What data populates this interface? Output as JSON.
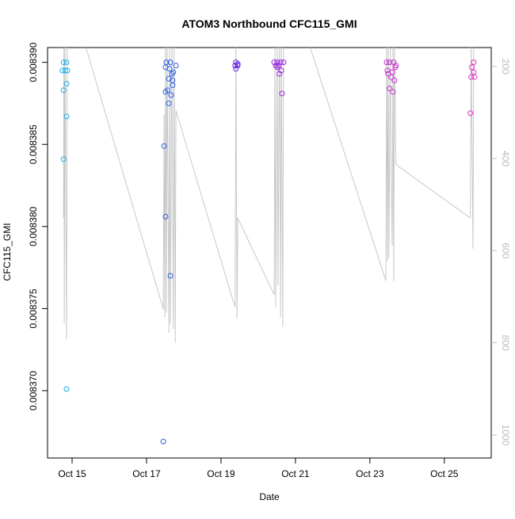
{
  "chart_data": {
    "type": "scatter",
    "title": "ATOM3 Northbound CFC115_GMI",
    "xlabel": "Date",
    "ylabel": "CFC115_GMI",
    "xlim": [
      14.34,
      26.26
    ],
    "xticks": [
      {
        "value": 15,
        "label": "Oct 15"
      },
      {
        "value": 17,
        "label": "Oct 17"
      },
      {
        "value": 19,
        "label": "Oct 19"
      },
      {
        "value": 21,
        "label": "Oct 21"
      },
      {
        "value": 23,
        "label": "Oct 23"
      },
      {
        "value": 25,
        "label": "Oct 25"
      }
    ],
    "ylim": [
      0.0083659,
      0.0083909
    ],
    "yticks": [
      {
        "value": 0.00837,
        "label": "0.008370"
      },
      0.008375,
      {
        "value": 0.00838,
        "label": "0.008380"
      },
      0.008385,
      {
        "value": 0.00839,
        "label": "0.008390"
      }
    ],
    "y2lim": [
      1050,
      159
    ],
    "y2ticks": [
      200,
      400,
      600,
      800,
      1000
    ],
    "y2color": "#bbbbbb",
    "series": [
      {
        "color": "#22b0e6",
        "x": [
          14.77,
          14.85,
          14.74,
          14.81,
          14.87,
          14.77,
          14.85,
          14.85,
          14.77,
          14.85
        ],
        "values": [
          0.00839,
          0.00839,
          0.0083895,
          0.0083895,
          0.0083895,
          0.0083883,
          0.0083887,
          0.0083867,
          0.0083841,
          0.0083701
        ]
      },
      {
        "color": "#2a5ee0",
        "x": [
          17.53,
          17.64,
          17.51,
          17.79,
          17.62,
          17.72,
          17.68,
          17.6,
          17.7,
          17.51,
          17.57,
          17.66,
          17.6,
          17.7,
          17.47,
          17.51,
          17.64,
          17.45
        ],
        "values": [
          0.00839,
          0.00839,
          0.0083897,
          0.0083898,
          0.0083896,
          0.0083894,
          0.0083893,
          0.008389,
          0.0083889,
          0.0083882,
          0.0083883,
          0.008388,
          0.0083875,
          0.0083886,
          0.0083849,
          0.0083806,
          0.008377,
          0.0083669
        ]
      },
      {
        "color": "#6a1ee6",
        "x": [
          19.4,
          19.45,
          19.38,
          19.45,
          19.4
        ],
        "values": [
          0.00839,
          0.0083899,
          0.0083898,
          0.0083898,
          0.0083896
        ]
      },
      {
        "color": "#9a28e0",
        "x": [
          20.43,
          20.51,
          20.6,
          20.68,
          20.47,
          20.55,
          20.62,
          20.57,
          20.51,
          20.64
        ],
        "values": [
          0.00839,
          0.00839,
          0.00839,
          0.00839,
          0.0083898,
          0.0083898,
          0.0083895,
          0.0083893,
          0.0083897,
          0.0083881
        ]
      },
      {
        "color": "#cc2ed4",
        "x": [
          23.45,
          23.53,
          23.64,
          23.7,
          23.49,
          23.57,
          23.66,
          23.53,
          23.62,
          23.68,
          23.47,
          23.6
        ],
        "values": [
          0.00839,
          0.00839,
          0.00839,
          0.0083898,
          0.0083893,
          0.0083891,
          0.0083889,
          0.0083884,
          0.0083882,
          0.0083897,
          0.0083895,
          0.0083894
        ]
      },
      {
        "color": "#e030c0",
        "x": [
          25.79,
          25.74,
          25.79,
          25.72,
          25.81,
          25.7
        ],
        "values": [
          0.00839,
          0.0083897,
          0.0083894,
          0.0083891,
          0.0083891,
          0.0083869
        ]
      }
    ],
    "line": {
      "color": "#c8c8c8",
      "axis": "y2",
      "x": [
        14.77,
        14.78,
        14.79,
        14.81,
        14.85,
        14.87,
        15.34,
        17.45,
        17.47,
        17.49,
        17.51,
        17.53,
        17.55,
        17.6,
        17.62,
        17.64,
        17.68,
        17.72,
        17.74,
        17.77,
        17.79,
        19.38,
        19.4,
        19.43,
        19.45,
        20.43,
        20.45,
        20.47,
        20.51,
        20.53,
        20.57,
        20.6,
        20.62,
        20.66,
        20.68,
        21.36,
        23.43,
        23.45,
        23.47,
        23.49,
        23.51,
        23.55,
        23.57,
        23.6,
        23.62,
        23.64,
        23.66,
        23.7,
        25.7,
        25.72,
        25.77,
        25.79
      ],
      "values": [
        529,
        150,
        758,
        150,
        792,
        150,
        150,
        727,
        305,
        744,
        150,
        735,
        150,
        778,
        150,
        761,
        150,
        770,
        150,
        799,
        296,
        723,
        150,
        747,
        529,
        696,
        150,
        723,
        150,
        675,
        150,
        744,
        150,
        765,
        150,
        150,
        665,
        150,
        623,
        150,
        615,
        150,
        434,
        589,
        150,
        666,
        150,
        413,
        529,
        150,
        596,
        150
      ]
    }
  }
}
